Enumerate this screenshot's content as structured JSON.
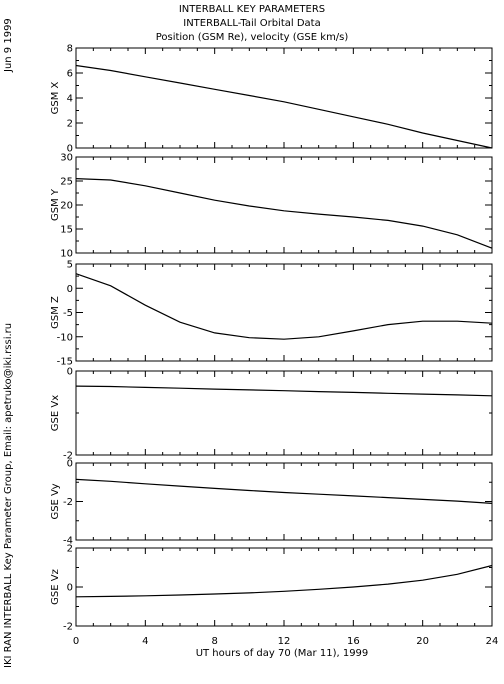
{
  "header": {
    "title": "INTERBALL KEY PARAMETERS",
    "subtitle": "INTERBALL-Tail Orbital Data",
    "subtitle2": "Position (GSM Re), velocity (GSE km/s)"
  },
  "side_text": {
    "date": "Jun  9 1999",
    "credit": "IKI RAN INTERBALL Key Parameter Group, Email: apetruko@iki.rssi.ru"
  },
  "chart_data": {
    "type": "line",
    "xlabel": "UT hours of day  70 (Mar 11), 1999",
    "xlim": [
      0,
      24
    ],
    "xticks": [
      0,
      4,
      8,
      12,
      16,
      20,
      24
    ],
    "xtick_labels": [
      "0",
      "4",
      "8",
      "12",
      "16",
      "20",
      "24"
    ],
    "x": [
      0,
      2,
      4,
      6,
      8,
      10,
      12,
      14,
      16,
      18,
      20,
      22,
      24
    ],
    "panels": [
      {
        "ylabel": "GSM X",
        "ylim": [
          0,
          8
        ],
        "yticks": [
          0,
          2,
          4,
          6,
          8
        ],
        "ytick_labels": [
          "0",
          "2",
          "4",
          "6",
          "8"
        ],
        "values": [
          6.6,
          6.2,
          5.7,
          5.2,
          4.7,
          4.2,
          3.7,
          3.1,
          2.5,
          1.9,
          1.2,
          0.6,
          0.0
        ]
      },
      {
        "ylabel": "GSM Y",
        "ylim": [
          10,
          30
        ],
        "yticks": [
          10,
          15,
          20,
          25,
          30
        ],
        "ytick_labels": [
          "10",
          "15",
          "20",
          "25",
          "30"
        ],
        "values": [
          25.5,
          25.2,
          24.0,
          22.5,
          21.0,
          19.8,
          18.8,
          18.1,
          17.5,
          16.8,
          15.6,
          13.8,
          11.0
        ]
      },
      {
        "ylabel": "GSM Z",
        "ylim": [
          -15,
          5
        ],
        "yticks": [
          -15,
          -10,
          -5,
          0,
          5
        ],
        "ytick_labels": [
          "-15",
          "-10",
          "-5",
          "0",
          "5"
        ],
        "values": [
          3.0,
          0.5,
          -3.5,
          -7.0,
          -9.2,
          -10.2,
          -10.5,
          -10.0,
          -8.8,
          -7.5,
          -6.8,
          -6.8,
          -7.2
        ]
      },
      {
        "ylabel": "GSE Vx",
        "ylim": [
          -2,
          0
        ],
        "yticks": [
          -2,
          0
        ],
        "ytick_labels": [
          "-2",
          "0"
        ],
        "values": [
          -0.36,
          -0.37,
          -0.39,
          -0.41,
          -0.43,
          -0.45,
          -0.47,
          -0.49,
          -0.51,
          -0.53,
          -0.55,
          -0.57,
          -0.59
        ]
      },
      {
        "ylabel": "GSE Vy",
        "ylim": [
          -4,
          0
        ],
        "yticks": [
          -4,
          -2,
          0
        ],
        "ytick_labels": [
          "-4",
          "-2",
          "0"
        ],
        "values": [
          -0.85,
          -0.95,
          -1.08,
          -1.2,
          -1.32,
          -1.43,
          -1.53,
          -1.62,
          -1.71,
          -1.8,
          -1.89,
          -1.98,
          -2.1
        ]
      },
      {
        "ylabel": "GSE Vz",
        "ylim": [
          -2,
          2
        ],
        "yticks": [
          -2,
          0,
          2
        ],
        "ytick_labels": [
          "-2",
          "0",
          "2"
        ],
        "values": [
          -0.5,
          -0.48,
          -0.45,
          -0.41,
          -0.36,
          -0.3,
          -0.22,
          -0.12,
          0.0,
          0.15,
          0.35,
          0.65,
          1.1
        ]
      }
    ]
  }
}
